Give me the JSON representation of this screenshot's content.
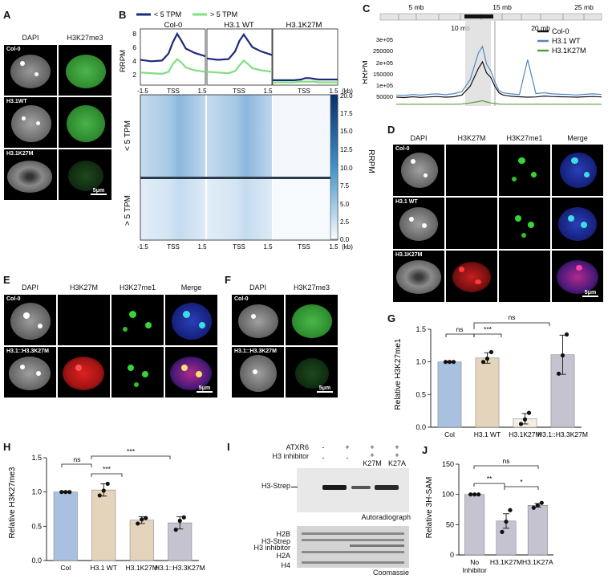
{
  "panels": {
    "A": {
      "letter": "A",
      "cols": [
        "DAPI",
        "H3K27me3"
      ],
      "rows": [
        "Col-0",
        "H3.1WT",
        "H3.1K27M"
      ],
      "scalebar": "5μm"
    },
    "B": {
      "letter": "B",
      "legend": [
        "< 5 TPM",
        "> 5 TPM"
      ],
      "titles": [
        "Col-0",
        "H3.1 WT",
        "H3.1K27M"
      ],
      "ylabel": "RRPM",
      "yticks": [
        "8",
        "6",
        "4",
        "2"
      ],
      "xticks": [
        "-1.5",
        "TSS",
        "1.5"
      ],
      "kb": "(kb)",
      "rowlabels": [
        "< 5 TPM",
        "> 5 TPM"
      ],
      "colorbar_ticks": [
        "20.0",
        "17.5",
        "15.0",
        "12.5",
        "10.0",
        "7.5",
        "5.0",
        "2.5",
        "0.0"
      ],
      "colorbar_label": "RRPM"
    },
    "C": {
      "letter": "C",
      "mb_top": [
        "5 mb",
        "15 mb",
        "25 mb"
      ],
      "mb_bottom": [
        "10 mb",
        "20 mb"
      ],
      "ylabel": "RRPM",
      "yticks": [
        "3e+05",
        "250000",
        "2e+05",
        "150000",
        "1e+05",
        "50000"
      ],
      "legend": [
        "Col-0",
        "H3.1 WT",
        "H3.1K27M"
      ],
      "colors": [
        "#111111",
        "#4f86c6",
        "#5a9e3a"
      ]
    },
    "D": {
      "letter": "D",
      "cols": [
        "DAPI",
        "H3K27M",
        "H3K27me1",
        "Merge"
      ],
      "rows": [
        "Col-0",
        "H3.1 WT",
        "H3.1K27M"
      ],
      "scalebar": "5μm"
    },
    "E": {
      "letter": "E",
      "cols": [
        "DAPI",
        "H3K27M",
        "H3K27me1",
        "Merge"
      ],
      "rows": [
        "Col-0",
        "H3.1::H3.3K27M"
      ],
      "scalebar": "5μm"
    },
    "F": {
      "letter": "F",
      "cols": [
        "DAPI",
        "H3K27me3"
      ],
      "rows": [
        "Col-0",
        "H3.1::H3.3K27M"
      ],
      "scalebar": "5μm"
    },
    "G": {
      "letter": "G",
      "ylabel": "Relative H3K27me1",
      "sig": [
        "ns",
        "***",
        "ns"
      ]
    },
    "H": {
      "letter": "H",
      "ylabel": "Relative H3K27me3",
      "sig": [
        "ns",
        "***",
        "***"
      ]
    },
    "I": {
      "letter": "I",
      "row_labels": [
        "ATXR6",
        "H3 inhibitor"
      ],
      "atxr6": [
        "-",
        "+",
        "+",
        "+"
      ],
      "inhibitor": [
        "-",
        "-",
        "K27M",
        "K27A"
      ],
      "inhib_plus": [
        "",
        "",
        "+",
        "+"
      ],
      "blot_label": "H3-Strep",
      "autorad": "Autoradiograph",
      "gel_bands": [
        "H2B",
        "H3-Strep",
        "H3 inhibitor",
        "H2A",
        "H4"
      ],
      "coomassie": "Coomassie"
    },
    "J": {
      "letter": "J",
      "ylabel": "Relative 3H-SAM",
      "sig": [
        "ns",
        "**",
        "*"
      ]
    }
  },
  "chart_data": [
    {
      "id": "B-profile",
      "type": "line",
      "x": [
        -1.5,
        -1.0,
        -0.5,
        -0.2,
        0,
        0.2,
        0.4,
        0.6,
        1.0,
        1.5
      ],
      "ylabel": "RRPM",
      "ylim": [
        0.5,
        8.5
      ],
      "panels": [
        {
          "title": "Col-0",
          "series": [
            {
              "name": "< 5 TPM",
              "values": [
                4.1,
                3.9,
                4.0,
                5.0,
                6.6,
                7.8,
                6.8,
                5.7,
                5.1,
                4.6
              ]
            },
            {
              "name": "> 5 TPM",
              "values": [
                2.3,
                2.2,
                2.1,
                2.4,
                3.5,
                4.2,
                3.7,
                3.0,
                2.6,
                2.4
              ]
            }
          ]
        },
        {
          "title": "H3.1 WT",
          "series": [
            {
              "name": "< 5 TPM",
              "values": [
                4.3,
                4.1,
                4.2,
                5.3,
                6.8,
                7.7,
                6.8,
                5.9,
                5.3,
                4.8
              ]
            },
            {
              "name": "> 5 TPM",
              "values": [
                2.4,
                2.3,
                2.2,
                2.5,
                3.3,
                4.0,
                3.5,
                2.9,
                2.6,
                2.4
              ]
            }
          ]
        },
        {
          "title": "H3.1K27M",
          "series": [
            {
              "name": "< 5 TPM",
              "values": [
                1.2,
                1.2,
                1.2,
                1.3,
                1.5,
                1.5,
                1.4,
                1.3,
                1.3,
                1.3
              ]
            },
            {
              "name": "> 5 TPM",
              "values": [
                0.9,
                0.9,
                0.9,
                1.0,
                1.0,
                1.0,
                1.0,
                0.9,
                0.9,
                0.9
              ]
            }
          ]
        }
      ]
    },
    {
      "id": "C-track",
      "type": "line",
      "x": [
        2,
        3,
        4,
        5,
        6,
        7,
        8,
        9,
        10,
        11,
        12,
        12.5,
        13,
        13.5,
        14,
        14.5,
        15,
        16,
        17,
        18,
        19,
        20,
        21,
        22,
        23,
        24,
        25,
        26,
        27
      ],
      "ylabel": "RRPM",
      "ylim": [
        0,
        320000
      ],
      "series": [
        {
          "name": "Col-0",
          "values": [
            40000,
            38000,
            42000,
            39000,
            41000,
            43000,
            40000,
            42000,
            50000,
            90000,
            170000,
            200000,
            150000,
            130000,
            90000,
            60000,
            50000,
            44000,
            42000,
            40000,
            41000,
            45000,
            43000,
            42000,
            41000,
            40000,
            42000,
            43000,
            41000
          ]
        },
        {
          "name": "H3.1 WT",
          "values": [
            50000,
            48000,
            52000,
            49000,
            53000,
            55000,
            51000,
            56000,
            65000,
            120000,
            240000,
            270000,
            190000,
            160000,
            110000,
            70000,
            60000,
            55000,
            52000,
            210000,
            56000,
            60000,
            55000,
            53000,
            52000,
            50000,
            53000,
            55000,
            52000
          ]
        },
        {
          "name": "H3.1K27M",
          "values": [
            8000,
            8000,
            8000,
            8000,
            8000,
            8000,
            8000,
            8000,
            9000,
            14000,
            20000,
            24000,
            18000,
            14000,
            11000,
            9000,
            8000,
            8000,
            8000,
            8000,
            8000,
            8000,
            8000,
            8000,
            8000,
            8000,
            8000,
            8000,
            8000
          ]
        }
      ]
    },
    {
      "id": "G-bar",
      "type": "bar",
      "categories": [
        "Col",
        "H3.1 WT",
        "H3.1K27M",
        "H3.1::H3.3K27M"
      ],
      "values": [
        1.0,
        1.06,
        0.13,
        1.11
      ],
      "points": [
        [
          1.0,
          1.0,
          1.0
        ],
        [
          1.0,
          1.05,
          1.15
        ],
        [
          0.05,
          0.12,
          0.22
        ],
        [
          0.82,
          1.1,
          1.42
        ]
      ],
      "errors": [
        0.01,
        0.08,
        0.08,
        0.3
      ],
      "ylabel": "Relative H3K27me1",
      "ylim": [
        0,
        1.5
      ],
      "yticks": [
        0.0,
        0.5,
        1.0,
        1.5
      ],
      "colors": [
        "#a9c1e0",
        "#e3d4bb",
        "#f3efe1",
        "#c4c3cf"
      ]
    },
    {
      "id": "H-bar",
      "type": "bar",
      "categories": [
        "Col",
        "H3.1 WT",
        "H3.1K27M",
        "H3.1::H3.3K27M"
      ],
      "values": [
        1.0,
        1.03,
        0.59,
        0.55
      ],
      "points": [
        [
          1.0,
          1.0,
          1.0
        ],
        [
          0.95,
          1.02,
          1.12
        ],
        [
          0.54,
          0.6,
          0.62
        ],
        [
          0.45,
          0.58,
          0.63
        ]
      ],
      "errors": [
        0.01,
        0.09,
        0.05,
        0.09
      ],
      "ylabel": "Relative H3K27me3",
      "ylim": [
        0,
        1.5
      ],
      "yticks": [
        0.0,
        0.5,
        1.0,
        1.5
      ],
      "colors": [
        "#a9c1e0",
        "#e3d4bb",
        "#e3d4bb",
        "#c4c3cf"
      ]
    },
    {
      "id": "J-bar",
      "type": "bar",
      "categories": [
        "No\nInhibitor",
        "H3.1K27M",
        "H3.1K27A"
      ],
      "values": [
        100,
        56,
        82
      ],
      "points": [
        [
          100,
          100,
          100
        ],
        [
          38,
          55,
          74
        ],
        [
          78,
          82,
          86
        ]
      ],
      "errors": [
        0.5,
        12,
        3
      ],
      "ylabel": "Relative 3H-SAM",
      "ylim": [
        0,
        150
      ],
      "yticks": [
        0,
        50,
        100,
        150
      ],
      "colors": [
        "#c4c3cf",
        "#c4c3cf",
        "#c4c3cf"
      ]
    }
  ]
}
